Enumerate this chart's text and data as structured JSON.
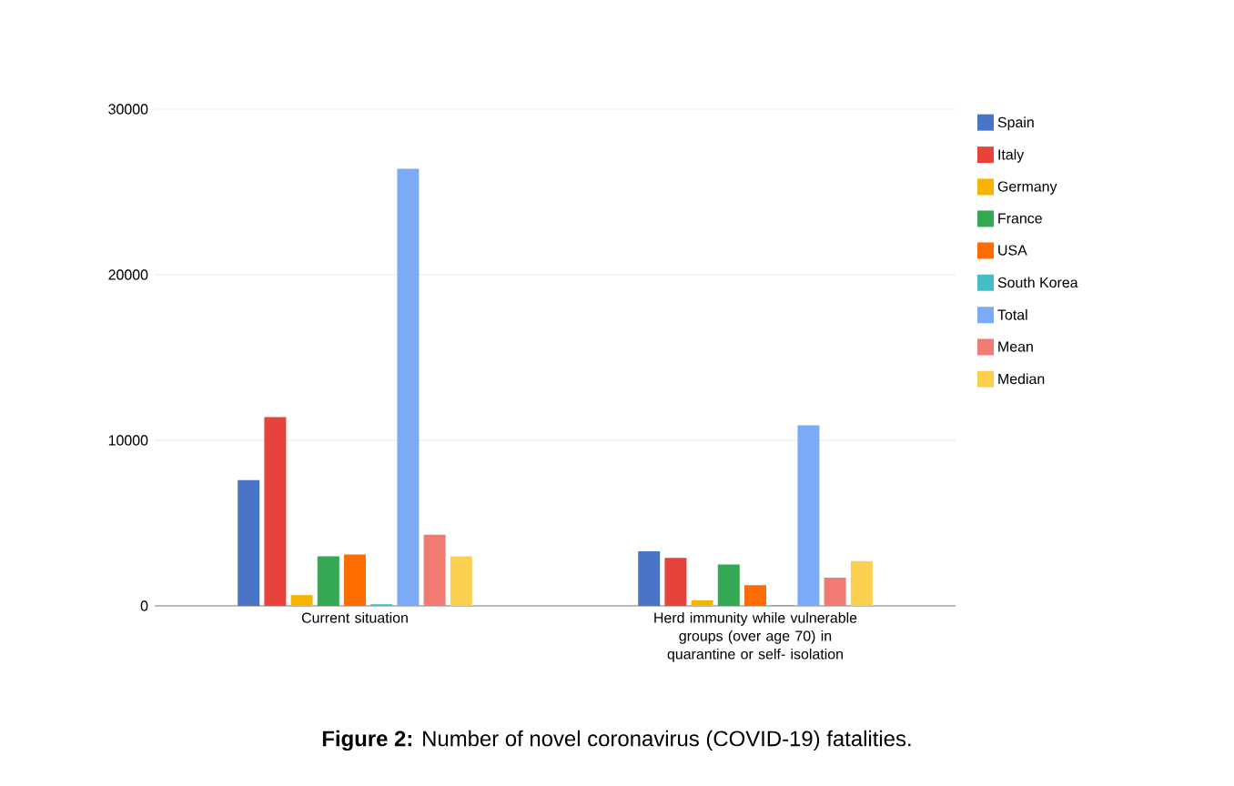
{
  "chart_data": {
    "type": "bar",
    "categories": [
      "Current situation",
      "Herd immunity while vulnerable groups (over age 70) in quarantine or self- isolation"
    ],
    "series": [
      {
        "name": "Spain",
        "color": "#4a74c6",
        "values": [
          7600,
          3300
        ]
      },
      {
        "name": "Italy",
        "color": "#e8433a",
        "values": [
          11400,
          2900
        ]
      },
      {
        "name": "Germany",
        "color": "#f6b400",
        "values": [
          650,
          330
        ]
      },
      {
        "name": "France",
        "color": "#34a853",
        "values": [
          3000,
          2500
        ]
      },
      {
        "name": "USA",
        "color": "#ff6d01",
        "values": [
          3100,
          1250
        ]
      },
      {
        "name": "South Korea",
        "color": "#46bdc6",
        "values": [
          100,
          50
        ]
      },
      {
        "name": "Total",
        "color": "#7baaf7",
        "values": [
          26400,
          10900
        ]
      },
      {
        "name": "Mean",
        "color": "#f07b72",
        "values": [
          4300,
          1700
        ]
      },
      {
        "name": "Median",
        "color": "#fcd04f",
        "values": [
          3000,
          2700
        ]
      }
    ],
    "ylim": [
      0,
      30000
    ],
    "yticks": [
      0,
      10000,
      20000,
      30000
    ],
    "grid": "y",
    "legend": "right",
    "annotations": [
      "**Figure 2:** Number of novel coronavirus (COVID-19) fatalities."
    ]
  }
}
